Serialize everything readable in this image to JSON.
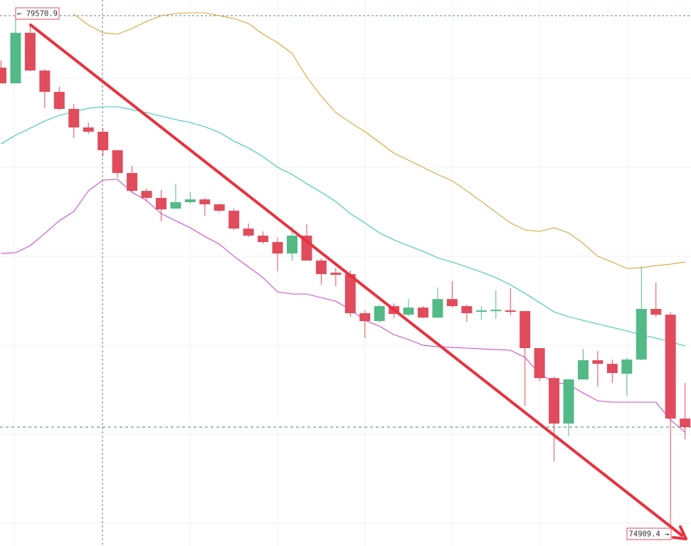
{
  "chart_data": {
    "type": "candlestick",
    "up_color": "#53b987",
    "down_color": "#e04c5c",
    "high_marker": {
      "value": 79570.9,
      "label": "← 79570.9"
    },
    "low_marker": {
      "value": 74909.4,
      "label": "74909.4 →"
    },
    "candles": {
      "open": [
        79108,
        78968,
        79418,
        79082,
        78892,
        78740,
        78575,
        78537,
        78372,
        78169,
        78010,
        77947,
        77852,
        77909,
        77934,
        77890,
        77833,
        77674,
        77611,
        77554,
        77452,
        77611,
        77389,
        77281,
        77268,
        76920,
        76850,
        76983,
        76907,
        76970,
        76881,
        77046,
        76983,
        76932,
        76939,
        76945,
        76939,
        76609,
        76342,
        75937,
        76330,
        76501,
        76469,
        76381,
        76507,
        76958,
        76907,
        75981
      ],
      "close": [
        78968,
        79418,
        79082,
        78892,
        78740,
        78575,
        78537,
        78372,
        78169,
        78010,
        77947,
        77845,
        77909,
        77934,
        77890,
        77833,
        77674,
        77611,
        77554,
        77452,
        77611,
        77389,
        77268,
        77262,
        76920,
        76850,
        76983,
        76913,
        76970,
        76881,
        77046,
        76983,
        76920,
        76945,
        76951,
        76932,
        76609,
        76342,
        75937,
        76330,
        76501,
        76469,
        76387,
        76507,
        76958,
        76907,
        75981,
        75905
      ],
      "high": [
        79171,
        79570.9,
        79488,
        79095,
        78936,
        78784,
        78619,
        78568,
        78372,
        78232,
        78029,
        78017,
        78074,
        77998,
        77947,
        77896,
        77852,
        77719,
        77649,
        77592,
        77693,
        77712,
        77408,
        77325,
        77300,
        76945,
        76996,
        77008,
        77046,
        76983,
        77148,
        77205,
        76996,
        76983,
        77123,
        77142,
        76939,
        76609,
        76355,
        76336,
        76602,
        76583,
        76507,
        76526,
        77338,
        77192,
        76932,
        76298
      ],
      "low": [
        78968,
        78968,
        79076,
        78746,
        78727,
        78480,
        78518,
        78315,
        78125,
        77998,
        77915,
        77738,
        77852,
        77896,
        77788,
        77820,
        77662,
        77598,
        77541,
        77294,
        77389,
        77389,
        77173,
        77160,
        76888,
        76698,
        76837,
        76875,
        76894,
        76875,
        76875,
        76970,
        76843,
        76862,
        76869,
        76901,
        76095,
        76317,
        75600,
        75829,
        76330,
        76266,
        76298,
        76184,
        76501,
        76888,
        74909.4,
        75797
      ]
    },
    "series": [
      {
        "color": "#d4a83a",
        "values": [
          null,
          null,
          null,
          null,
          null,
          79583,
          79488,
          79418,
          79406,
          79456,
          79520,
          79570,
          79590,
          79596,
          79596,
          79570,
          79545,
          79501,
          79406,
          79330,
          79234,
          79025,
          78854,
          78708,
          78619,
          78537,
          78442,
          78346,
          78283,
          78220,
          78156,
          78099,
          78010,
          77915,
          77820,
          77725,
          77662,
          77649,
          77681,
          77636,
          77541,
          77427,
          77376,
          77319,
          77325,
          77344,
          77357,
          77376
        ]
      },
      {
        "color": "#3cc8b4",
        "values": [
          78429,
          78505,
          78568,
          78632,
          78683,
          78714,
          78746,
          78759,
          78759,
          78733,
          78708,
          78676,
          78645,
          78619,
          78581,
          78530,
          78454,
          78391,
          78315,
          78220,
          78156,
          78074,
          77998,
          77915,
          77807,
          77725,
          77636,
          77573,
          77522,
          77471,
          77414,
          77376,
          77332,
          77287,
          77237,
          77173,
          77097,
          77015,
          76932,
          76888,
          76856,
          76824,
          76793,
          76761,
          76729,
          76698,
          76666,
          76628
        ]
      },
      {
        "color": "#c94fc9",
        "values": [
          77452,
          77459,
          77522,
          77630,
          77744,
          77826,
          78010,
          78106,
          78112,
          77998,
          77922,
          77807,
          77744,
          77681,
          77604,
          77535,
          77427,
          77332,
          77237,
          77110,
          77091,
          77091,
          77059,
          77027,
          76951,
          76856,
          76805,
          76729,
          76685,
          76634,
          76621,
          76615,
          76609,
          76602,
          76596,
          76590,
          76526,
          76380,
          76304,
          76285,
          76209,
          76140,
          76127,
          76127,
          76127,
          76127,
          75969,
          75860
        ]
      }
    ]
  }
}
